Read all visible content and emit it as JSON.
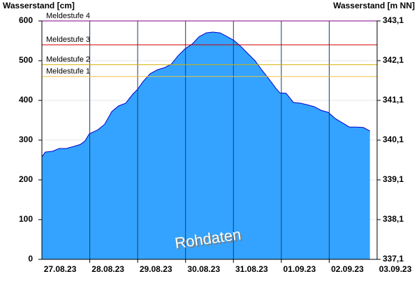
{
  "chart_data": {
    "type": "area",
    "y_title": "Wasserstand [cm]",
    "y2_title": "Wasserstand [m NN]",
    "watermark": "Rohdaten",
    "categories": [
      "27.08.23",
      "28.08.23",
      "29.08.23",
      "30.08.23",
      "31.08.23",
      "01.09.23",
      "02.09.23",
      "03.09.23"
    ],
    "xlim": [
      0,
      7
    ],
    "xticks": [
      1,
      2,
      3,
      4,
      5,
      6
    ],
    "ylim": [
      0,
      600
    ],
    "yticks": [
      0,
      100,
      200,
      300,
      400,
      500,
      600
    ],
    "y2lim": [
      337.1,
      343.1
    ],
    "y2ticks": [
      {
        "value": 337.1,
        "label": "337,1"
      },
      {
        "value": 338.1,
        "label": "338,1"
      },
      {
        "value": 339.1,
        "label": "339,1"
      },
      {
        "value": 340.1,
        "label": "340,1"
      },
      {
        "value": 341.1,
        "label": "341,1"
      },
      {
        "value": 342.1,
        "label": "342,1"
      },
      {
        "value": 343.1,
        "label": "343,1"
      }
    ],
    "grid": true,
    "thresholds": [
      {
        "label": "Meldestufe 4",
        "value": 600,
        "color": "#800080"
      },
      {
        "label": "Meldestufe 3",
        "value": 540,
        "color": "#cc0000"
      },
      {
        "label": "Meldestufe 2",
        "value": 490,
        "color": "#d4b000"
      },
      {
        "label": "Meldestufe 1",
        "value": 460,
        "color": "#f0c040"
      }
    ],
    "series": [
      {
        "color": "#33a3ff",
        "x": [
          0,
          0.07,
          0.22,
          0.36,
          0.51,
          0.66,
          0.8,
          0.9,
          0.99,
          1.17,
          1.31,
          1.46,
          1.6,
          1.75,
          1.9,
          2.0,
          2.11,
          2.26,
          2.41,
          2.55,
          2.7,
          2.84,
          2.99,
          3.14,
          3.28,
          3.43,
          3.57,
          3.72,
          3.86,
          4.01,
          4.16,
          4.3,
          4.45,
          4.59,
          4.74,
          4.89,
          4.97,
          5.1,
          5.25,
          5.4,
          5.54,
          5.69,
          5.83,
          5.98,
          6.13,
          6.27,
          6.42,
          6.56,
          6.71,
          6.85
        ],
        "values": [
          258,
          270,
          272,
          279,
          279,
          284,
          289,
          298,
          316,
          326,
          340,
          372,
          386,
          393,
          416,
          428,
          447,
          467,
          477,
          482,
          491,
          512,
          530,
          542,
          560,
          570,
          572,
          570,
          561,
          551,
          535,
          518,
          500,
          477,
          454,
          430,
          419,
          418,
          395,
          393,
          389,
          384,
          375,
          370,
          354,
          344,
          333,
          333,
          332,
          323
        ]
      }
    ]
  }
}
